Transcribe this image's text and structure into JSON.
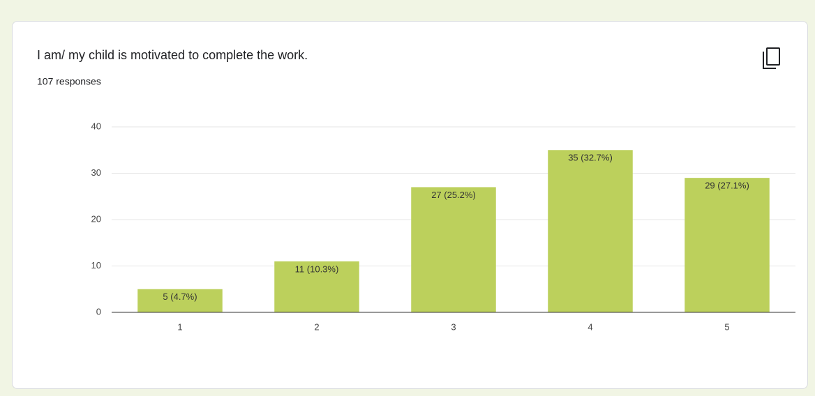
{
  "chart_data": {
    "type": "bar",
    "title": "I am/ my child is motivated to complete the work.",
    "subtitle": "107 responses",
    "categories": [
      "1",
      "2",
      "3",
      "4",
      "5"
    ],
    "values": [
      5,
      11,
      27,
      35,
      29
    ],
    "value_labels": [
      "5 (4.7%)",
      "11 (10.3%)",
      "27 (25.2%)",
      "35 (32.7%)",
      "29 (27.1%)"
    ],
    "color": "#bcd05c",
    "ylim": [
      0,
      40
    ],
    "yticks": [
      0,
      10,
      20,
      30,
      40
    ],
    "grid": true
  }
}
